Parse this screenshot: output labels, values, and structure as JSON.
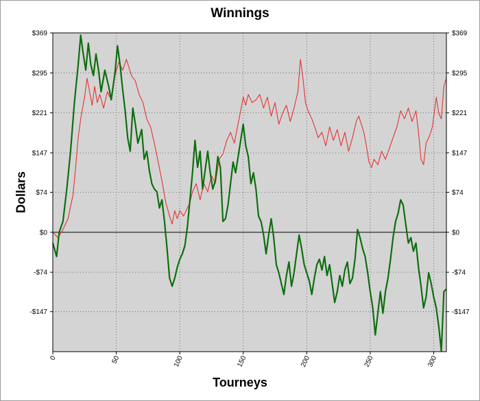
{
  "chart_data": {
    "type": "line",
    "title": "Winnings",
    "xlabel": "Tourneys",
    "ylabel": "Dollars",
    "xlim": [
      0,
      310
    ],
    "ylim": [
      -221,
      369
    ],
    "x_ticks": [
      0,
      50,
      100,
      150,
      200,
      250,
      300
    ],
    "x_tick_labels": [
      "0",
      "50",
      "100",
      "150",
      "200",
      "250",
      "300"
    ],
    "y_ticks": [
      369,
      295,
      221,
      147,
      74,
      0,
      -74,
      -147
    ],
    "y_tick_labels": [
      "$369",
      "$295",
      "$221",
      "$147",
      "$74",
      "$0",
      "-$74",
      "-$147"
    ],
    "grid": true,
    "background": "#d4d4d4",
    "series": [
      {
        "color": "#e83030",
        "points": [
          [
            0,
            0
          ],
          [
            4,
            -10
          ],
          [
            8,
            5
          ],
          [
            12,
            25
          ],
          [
            16,
            70
          ],
          [
            18,
            120
          ],
          [
            20,
            175
          ],
          [
            22,
            210
          ],
          [
            25,
            250
          ],
          [
            27,
            285
          ],
          [
            29,
            260
          ],
          [
            31,
            235
          ],
          [
            33,
            270
          ],
          [
            35,
            240
          ],
          [
            37,
            255
          ],
          [
            40,
            230
          ],
          [
            43,
            260
          ],
          [
            46,
            245
          ],
          [
            49,
            290
          ],
          [
            52,
            315
          ],
          [
            55,
            300
          ],
          [
            58,
            320
          ],
          [
            60,
            305
          ],
          [
            62,
            290
          ],
          [
            65,
            280
          ],
          [
            68,
            255
          ],
          [
            71,
            240
          ],
          [
            74,
            210
          ],
          [
            77,
            195
          ],
          [
            80,
            165
          ],
          [
            83,
            130
          ],
          [
            86,
            95
          ],
          [
            89,
            55
          ],
          [
            92,
            30
          ],
          [
            94,
            15
          ],
          [
            96,
            40
          ],
          [
            98,
            25
          ],
          [
            100,
            40
          ],
          [
            103,
            30
          ],
          [
            106,
            45
          ],
          [
            108,
            55
          ],
          [
            110,
            75
          ],
          [
            113,
            90
          ],
          [
            116,
            60
          ],
          [
            119,
            90
          ],
          [
            122,
            75
          ],
          [
            125,
            105
          ],
          [
            128,
            90
          ],
          [
            131,
            135
          ],
          [
            134,
            145
          ],
          [
            137,
            170
          ],
          [
            140,
            185
          ],
          [
            143,
            165
          ],
          [
            145,
            190
          ],
          [
            148,
            225
          ],
          [
            150,
            250
          ],
          [
            152,
            235
          ],
          [
            154,
            255
          ],
          [
            157,
            240
          ],
          [
            160,
            245
          ],
          [
            163,
            255
          ],
          [
            166,
            230
          ],
          [
            169,
            250
          ],
          [
            172,
            215
          ],
          [
            175,
            240
          ],
          [
            178,
            200
          ],
          [
            181,
            220
          ],
          [
            184,
            235
          ],
          [
            187,
            205
          ],
          [
            190,
            230
          ],
          [
            193,
            260
          ],
          [
            195,
            320
          ],
          [
            197,
            285
          ],
          [
            199,
            240
          ],
          [
            201,
            225
          ],
          [
            204,
            210
          ],
          [
            207,
            190
          ],
          [
            209,
            175
          ],
          [
            212,
            185
          ],
          [
            215,
            160
          ],
          [
            218,
            195
          ],
          [
            221,
            170
          ],
          [
            224,
            190
          ],
          [
            227,
            160
          ],
          [
            230,
            185
          ],
          [
            233,
            150
          ],
          [
            236,
            175
          ],
          [
            239,
            205
          ],
          [
            241,
            215
          ],
          [
            243,
            200
          ],
          [
            245,
            185
          ],
          [
            247,
            160
          ],
          [
            249,
            130
          ],
          [
            251,
            120
          ],
          [
            253,
            135
          ],
          [
            256,
            125
          ],
          [
            259,
            150
          ],
          [
            262,
            135
          ],
          [
            265,
            155
          ],
          [
            268,
            175
          ],
          [
            271,
            195
          ],
          [
            274,
            225
          ],
          [
            277,
            210
          ],
          [
            280,
            230
          ],
          [
            283,
            205
          ],
          [
            286,
            225
          ],
          [
            288,
            185
          ],
          [
            290,
            135
          ],
          [
            292,
            125
          ],
          [
            294,
            165
          ],
          [
            297,
            180
          ],
          [
            299,
            195
          ],
          [
            302,
            250
          ],
          [
            304,
            220
          ],
          [
            306,
            210
          ],
          [
            308,
            270
          ],
          [
            310,
            285
          ]
        ]
      },
      {
        "color": "#0e6e0e",
        "points": [
          [
            0,
            -20
          ],
          [
            3,
            -45
          ],
          [
            5,
            0
          ],
          [
            8,
            20
          ],
          [
            11,
            80
          ],
          [
            14,
            150
          ],
          [
            17,
            240
          ],
          [
            20,
            310
          ],
          [
            22,
            365
          ],
          [
            24,
            330
          ],
          [
            26,
            300
          ],
          [
            28,
            350
          ],
          [
            30,
            310
          ],
          [
            32,
            290
          ],
          [
            34,
            330
          ],
          [
            36,
            300
          ],
          [
            38,
            260
          ],
          [
            41,
            300
          ],
          [
            44,
            270
          ],
          [
            46,
            245
          ],
          [
            49,
            295
          ],
          [
            51,
            345
          ],
          [
            53,
            310
          ],
          [
            55,
            265
          ],
          [
            57,
            225
          ],
          [
            59,
            175
          ],
          [
            61,
            150
          ],
          [
            63,
            230
          ],
          [
            65,
            200
          ],
          [
            67,
            165
          ],
          [
            70,
            190
          ],
          [
            72,
            135
          ],
          [
            74,
            150
          ],
          [
            76,
            115
          ],
          [
            78,
            90
          ],
          [
            80,
            80
          ],
          [
            82,
            75
          ],
          [
            84,
            45
          ],
          [
            86,
            60
          ],
          [
            88,
            20
          ],
          [
            90,
            -30
          ],
          [
            92,
            -85
          ],
          [
            94,
            -100
          ],
          [
            96,
            -85
          ],
          [
            98,
            -65
          ],
          [
            100,
            -50
          ],
          [
            102,
            -40
          ],
          [
            104,
            -25
          ],
          [
            106,
            10
          ],
          [
            108,
            60
          ],
          [
            110,
            110
          ],
          [
            112,
            170
          ],
          [
            114,
            120
          ],
          [
            116,
            150
          ],
          [
            118,
            80
          ],
          [
            120,
            115
          ],
          [
            122,
            150
          ],
          [
            124,
            110
          ],
          [
            126,
            80
          ],
          [
            128,
            95
          ],
          [
            130,
            140
          ],
          [
            132,
            120
          ],
          [
            134,
            20
          ],
          [
            136,
            25
          ],
          [
            138,
            50
          ],
          [
            140,
            90
          ],
          [
            142,
            130
          ],
          [
            144,
            110
          ],
          [
            146,
            140
          ],
          [
            148,
            170
          ],
          [
            150,
            200
          ],
          [
            152,
            160
          ],
          [
            154,
            140
          ],
          [
            156,
            90
          ],
          [
            158,
            110
          ],
          [
            160,
            80
          ],
          [
            162,
            30
          ],
          [
            164,
            20
          ],
          [
            166,
            -5
          ],
          [
            168,
            -40
          ],
          [
            170,
            -5
          ],
          [
            172,
            25
          ],
          [
            174,
            -10
          ],
          [
            176,
            -60
          ],
          [
            178,
            -75
          ],
          [
            180,
            -95
          ],
          [
            182,
            -115
          ],
          [
            184,
            -80
          ],
          [
            186,
            -55
          ],
          [
            188,
            -100
          ],
          [
            190,
            -75
          ],
          [
            192,
            -40
          ],
          [
            194,
            -5
          ],
          [
            196,
            -30
          ],
          [
            198,
            -60
          ],
          [
            200,
            -75
          ],
          [
            202,
            -90
          ],
          [
            204,
            -115
          ],
          [
            206,
            -85
          ],
          [
            208,
            -60
          ],
          [
            210,
            -50
          ],
          [
            212,
            -70
          ],
          [
            214,
            -45
          ],
          [
            216,
            -80
          ],
          [
            218,
            -60
          ],
          [
            220,
            -95
          ],
          [
            222,
            -130
          ],
          [
            224,
            -110
          ],
          [
            226,
            -80
          ],
          [
            228,
            -100
          ],
          [
            230,
            -70
          ],
          [
            232,
            -55
          ],
          [
            234,
            -95
          ],
          [
            236,
            -85
          ],
          [
            238,
            -50
          ],
          [
            240,
            5
          ],
          [
            242,
            -10
          ],
          [
            244,
            -30
          ],
          [
            246,
            -45
          ],
          [
            248,
            -75
          ],
          [
            250,
            -110
          ],
          [
            252,
            -140
          ],
          [
            254,
            -190
          ],
          [
            256,
            -150
          ],
          [
            258,
            -110
          ],
          [
            260,
            -150
          ],
          [
            262,
            -110
          ],
          [
            264,
            -85
          ],
          [
            266,
            -50
          ],
          [
            268,
            -10
          ],
          [
            270,
            20
          ],
          [
            272,
            35
          ],
          [
            274,
            60
          ],
          [
            276,
            50
          ],
          [
            278,
            15
          ],
          [
            280,
            -20
          ],
          [
            282,
            -10
          ],
          [
            284,
            -35
          ],
          [
            286,
            -20
          ],
          [
            288,
            -65
          ],
          [
            290,
            -100
          ],
          [
            292,
            -140
          ],
          [
            294,
            -120
          ],
          [
            296,
            -75
          ],
          [
            298,
            -95
          ],
          [
            300,
            -120
          ],
          [
            302,
            -140
          ],
          [
            304,
            -175
          ],
          [
            306,
            -220
          ],
          [
            308,
            -110
          ],
          [
            310,
            -105
          ]
        ]
      }
    ]
  }
}
